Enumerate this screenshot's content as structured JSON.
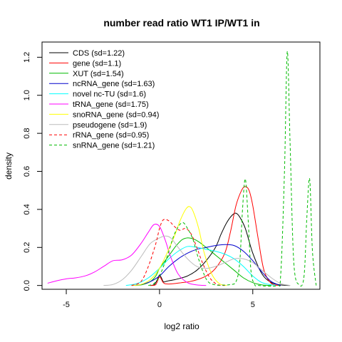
{
  "chart_data": {
    "type": "line",
    "title": "number read ratio WT1 IP/WT1 in",
    "xlabel": "log2 ratio",
    "ylabel": "density",
    "xlim": [
      -6.3,
      8.6
    ],
    "ylim": [
      -0.02,
      1.28
    ],
    "xticks": [
      -5,
      0,
      5
    ],
    "yticks": [
      0.0,
      0.2,
      0.4,
      0.6,
      0.8,
      1.0,
      1.2
    ],
    "xtick_labels": [
      "-5",
      "0",
      "5"
    ],
    "ytick_labels": [
      "0.0",
      "0.2",
      "0.4",
      "0.6",
      "0.8",
      "1.0",
      "1.2"
    ],
    "grid": false,
    "legend_position": "top-left",
    "series": [
      {
        "name": "CDS (sd=1.22)",
        "color": "#000000",
        "dash": "solid",
        "x": [
          -0.5,
          -0.3,
          -0.2,
          -0.1,
          0,
          0.1,
          0.2,
          0.3,
          0.5,
          0.8,
          1,
          1.5,
          2,
          2.5,
          3,
          3.3,
          3.6,
          3.9,
          4.1,
          4.3,
          4.6,
          5,
          5.5,
          6,
          6.5,
          7
        ],
        "y": [
          0,
          0.003,
          0.015,
          0.035,
          0.055,
          0.04,
          0.02,
          0.02,
          0.025,
          0.03,
          0.035,
          0.05,
          0.08,
          0.13,
          0.2,
          0.27,
          0.33,
          0.37,
          0.38,
          0.36,
          0.3,
          0.17,
          0.06,
          0.015,
          0.003,
          0
        ]
      },
      {
        "name": "gene (sd=1.1)",
        "color": "#ff0000",
        "dash": "solid",
        "x": [
          -0.5,
          -0.2,
          0,
          0.2,
          0.4,
          0.8,
          1.2,
          1.6,
          2,
          2.5,
          3,
          3.5,
          3.8,
          4.1,
          4.4,
          4.6,
          4.8,
          5,
          5.3,
          5.6,
          6,
          6.5
        ],
        "y": [
          0,
          0.005,
          0.045,
          0.015,
          0.008,
          0.01,
          0.015,
          0.02,
          0.03,
          0.05,
          0.09,
          0.17,
          0.28,
          0.42,
          0.5,
          0.52,
          0.5,
          0.42,
          0.24,
          0.08,
          0.01,
          0
        ]
      },
      {
        "name": "XUT (sd=1.54)",
        "color": "#00bb00",
        "dash": "solid",
        "x": [
          -1.3,
          -0.9,
          -0.5,
          -0.2,
          0,
          0.3,
          0.6,
          0.9,
          1.2,
          1.5,
          1.8,
          2.1,
          2.5,
          3,
          3.5,
          4,
          4.5,
          5,
          5.5,
          6
        ],
        "y": [
          0,
          0.005,
          0.02,
          0.05,
          0.09,
          0.13,
          0.17,
          0.21,
          0.24,
          0.25,
          0.245,
          0.23,
          0.2,
          0.16,
          0.12,
          0.08,
          0.04,
          0.015,
          0.003,
          0
        ]
      },
      {
        "name": "ncRNA_gene (sd=1.63)",
        "color": "#0000cc",
        "dash": "solid",
        "x": [
          -1.5,
          -1,
          -0.5,
          0,
          0.5,
          1,
          1.5,
          2,
          2.5,
          3,
          3.5,
          4,
          4.5,
          5,
          5.5,
          6,
          6.5
        ],
        "y": [
          0,
          0.005,
          0.02,
          0.05,
          0.1,
          0.14,
          0.17,
          0.19,
          0.2,
          0.21,
          0.215,
          0.21,
          0.18,
          0.13,
          0.07,
          0.02,
          0
        ]
      },
      {
        "name": "novel nc-TU (sd=1.6)",
        "color": "#00ffff",
        "dash": "solid",
        "x": [
          -1.8,
          -1.2,
          -0.6,
          0,
          0.5,
          1,
          1.5,
          2,
          2.5,
          3,
          3.5,
          4,
          4.5,
          5,
          5.5,
          6.2
        ],
        "y": [
          0,
          0.01,
          0.04,
          0.09,
          0.14,
          0.18,
          0.205,
          0.2,
          0.19,
          0.18,
          0.165,
          0.14,
          0.1,
          0.05,
          0.015,
          0
        ]
      },
      {
        "name": "tRNA_gene (sd=1.75)",
        "color": "#ff00ff",
        "dash": "solid",
        "x": [
          -6,
          -5.5,
          -5,
          -4.5,
          -4,
          -3.5,
          -3,
          -2.5,
          -2,
          -1.5,
          -1,
          -0.6,
          -0.3,
          0,
          0.3,
          0.6,
          1,
          1.5,
          2,
          2.5
        ],
        "y": [
          0.012,
          0.025,
          0.035,
          0.04,
          0.05,
          0.07,
          0.1,
          0.13,
          0.135,
          0.16,
          0.22,
          0.28,
          0.32,
          0.31,
          0.24,
          0.15,
          0.06,
          0.015,
          0.003,
          0
        ]
      },
      {
        "name": "snoRNA_gene (sd=0.94)",
        "color": "#ffff00",
        "dash": "solid",
        "x": [
          -1.5,
          -1,
          -0.5,
          0,
          0.4,
          0.8,
          1.1,
          1.4,
          1.6,
          1.8,
          2.1,
          2.4,
          2.8,
          3.2,
          3.6
        ],
        "y": [
          0,
          0.005,
          0.03,
          0.09,
          0.17,
          0.26,
          0.34,
          0.4,
          0.415,
          0.39,
          0.3,
          0.17,
          0.06,
          0.01,
          0
        ]
      },
      {
        "name": "pseudogene (sd=1.9)",
        "color": "#bbbbbb",
        "dash": "solid",
        "x": [
          -3,
          -2.5,
          -2,
          -1.5,
          -1,
          -0.5,
          0,
          0.3,
          0.6,
          1,
          1.5,
          2,
          2.5,
          3,
          3.5,
          4,
          4.5,
          5,
          5.5,
          6,
          6.5,
          7
        ],
        "y": [
          0,
          0.005,
          0.03,
          0.08,
          0.15,
          0.22,
          0.25,
          0.26,
          0.25,
          0.2,
          0.14,
          0.1,
          0.09,
          0.1,
          0.12,
          0.14,
          0.14,
          0.12,
          0.08,
          0.04,
          0.01,
          0
        ]
      },
      {
        "name": "rRNA_gene (sd=0.95)",
        "color": "#ff0000",
        "dash": "dashed",
        "x": [
          -1.5,
          -1,
          -0.6,
          -0.2,
          0,
          0.2,
          0.5,
          0.8,
          1.1,
          1.4,
          1.7,
          2,
          2.3,
          2.7,
          3.1,
          3.5
        ],
        "y": [
          0,
          0.02,
          0.1,
          0.22,
          0.3,
          0.345,
          0.34,
          0.31,
          0.29,
          0.3,
          0.27,
          0.2,
          0.12,
          0.04,
          0.005,
          0
        ]
      },
      {
        "name": "snRNA_gene (sd=1.21)",
        "color": "#00bb00",
        "dash": "dashed",
        "x": [
          -0.6,
          -0.3,
          0,
          0.4,
          0.8,
          1.2,
          1.5,
          1.8,
          2,
          2.3,
          2.6,
          3,
          3.4,
          3.8,
          4.1,
          4.3,
          4.45,
          4.6,
          4.75,
          4.9,
          5.1,
          5.3,
          6.3,
          6.5,
          6.7,
          6.85,
          7,
          7.2,
          7.5,
          7.75,
          7.9,
          8.05,
          8.2,
          8.4
        ],
        "y": [
          0,
          0.01,
          0.05,
          0.15,
          0.27,
          0.33,
          0.3,
          0.24,
          0.17,
          0.08,
          0.02,
          0.003,
          0.002,
          0.005,
          0.02,
          0.12,
          0.4,
          0.56,
          0.35,
          0.08,
          0.005,
          0,
          0,
          0.06,
          0.6,
          1.23,
          0.75,
          0.12,
          0.003,
          0.05,
          0.36,
          0.56,
          0.18,
          0
        ]
      }
    ]
  }
}
